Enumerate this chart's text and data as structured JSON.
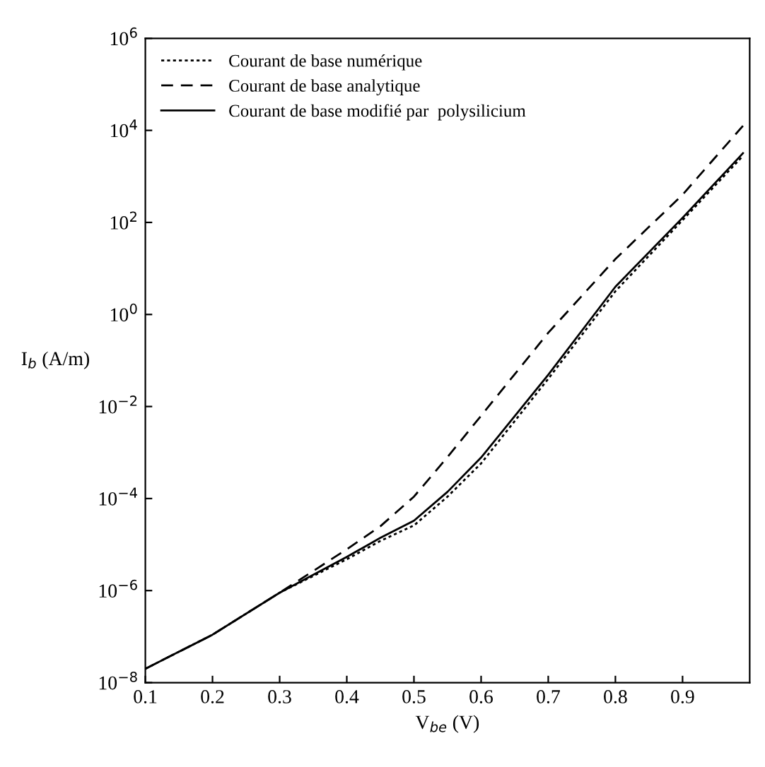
{
  "chart_data": {
    "type": "line",
    "xlabel": "V$_{be}$ (V)",
    "ylabel": "I$_{b}$ (A/m)",
    "log": "y",
    "x": [
      0.1,
      0.2,
      0.3,
      0.4,
      0.45,
      0.5,
      0.55,
      0.6,
      0.7,
      0.8,
      0.9,
      0.99
    ],
    "series": [
      {
        "name": "Courant de base numérique",
        "color": "#000000",
        "line_style": "dotted",
        "values": [
          2e-08,
          1.1e-07,
          9e-07,
          4.8e-06,
          1.2e-05,
          2.6e-05,
          0.00011,
          0.00058,
          0.04,
          3.2,
          112,
          2800
        ]
      },
      {
        "name": "Courant de base analytique",
        "color": "#000000",
        "line_style": "dashed",
        "values": [
          2e-08,
          1.1e-07,
          9e-07,
          7.9e-06,
          2.5e-05,
          0.00011,
          0.0008,
          0.0063,
          0.4,
          16,
          400,
          12600
        ]
      },
      {
        "name": "Courant de base modifié par  polysilicium",
        "color": "#000000",
        "line_style": "solid",
        "values": [
          2e-08,
          1.1e-07,
          9e-07,
          5.4e-06,
          1.4e-05,
          3.3e-05,
          0.00014,
          0.00078,
          0.049,
          4,
          126,
          3200
        ]
      }
    ],
    "xlim": [
      0.1,
      1.0
    ],
    "xticks": [
      0.1,
      0.2,
      0.3,
      0.4,
      0.5,
      0.6,
      0.7,
      0.8,
      0.9
    ],
    "ylim": [
      1e-08,
      1000000.0
    ],
    "yticks": [
      {
        "value": 1e-08,
        "label": "10$^{−8}$"
      },
      {
        "value": 1e-06,
        "label": "10$^{−6}$"
      },
      {
        "value": 0.0001,
        "label": "10$^{−4}$"
      },
      {
        "value": 0.01,
        "label": "10$^{−2}$"
      },
      {
        "value": 1,
        "label": "10$^{0}$"
      },
      {
        "value": 100,
        "label": "10$^{2}$"
      },
      {
        "value": 10000.0,
        "label": "10$^{4}$"
      },
      {
        "value": 1000000.0,
        "label": "10$^{6}$"
      }
    ],
    "grid": false,
    "legend": "top left"
  }
}
